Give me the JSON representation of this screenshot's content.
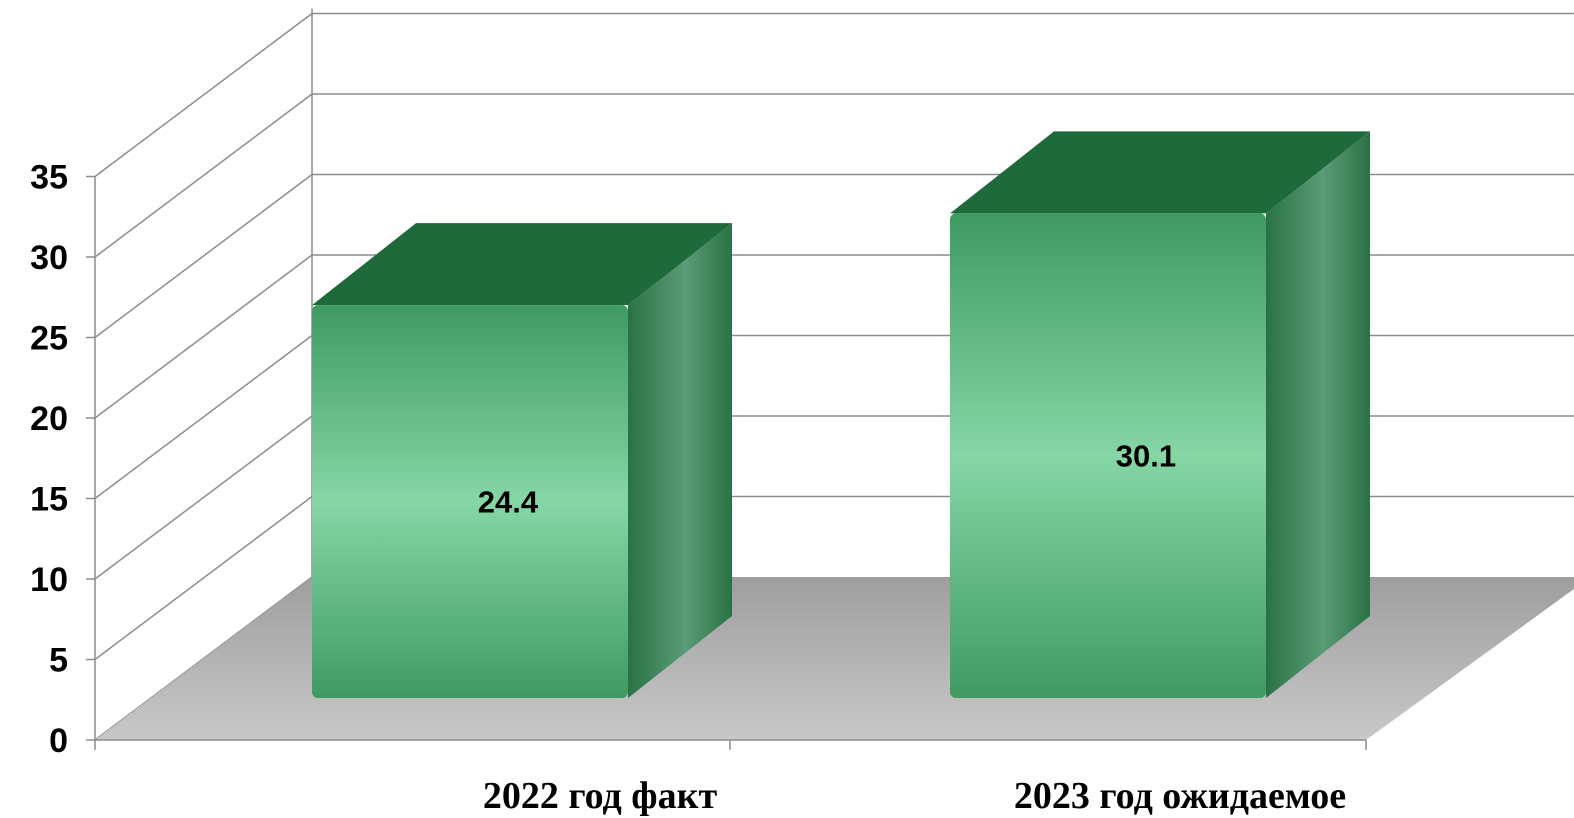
{
  "chart_data": {
    "type": "bar",
    "style": "3d-column",
    "categories": [
      "2022 год факт",
      "2023 год ожидаемое"
    ],
    "values": [
      24.4,
      30.1
    ],
    "data_labels": [
      "24.4",
      "30.1"
    ],
    "title": "",
    "xlabel": "",
    "ylabel": "",
    "ylim": [
      0,
      35
    ],
    "yticks": [
      0,
      5,
      10,
      15,
      20,
      25,
      30,
      35
    ],
    "ytick_labels": [
      "0",
      "5",
      "10",
      "15",
      "20",
      "25",
      "30",
      "35"
    ],
    "grid": true,
    "legend": "none",
    "colors": {
      "bar_front_light": "#86d6a6",
      "bar_front_dark": "#3f9a62",
      "bar_side": "#2f7a4a",
      "bar_top": "#1f6a3a",
      "floor": "#b8b8b8",
      "grid": "#8c8c8c"
    }
  }
}
